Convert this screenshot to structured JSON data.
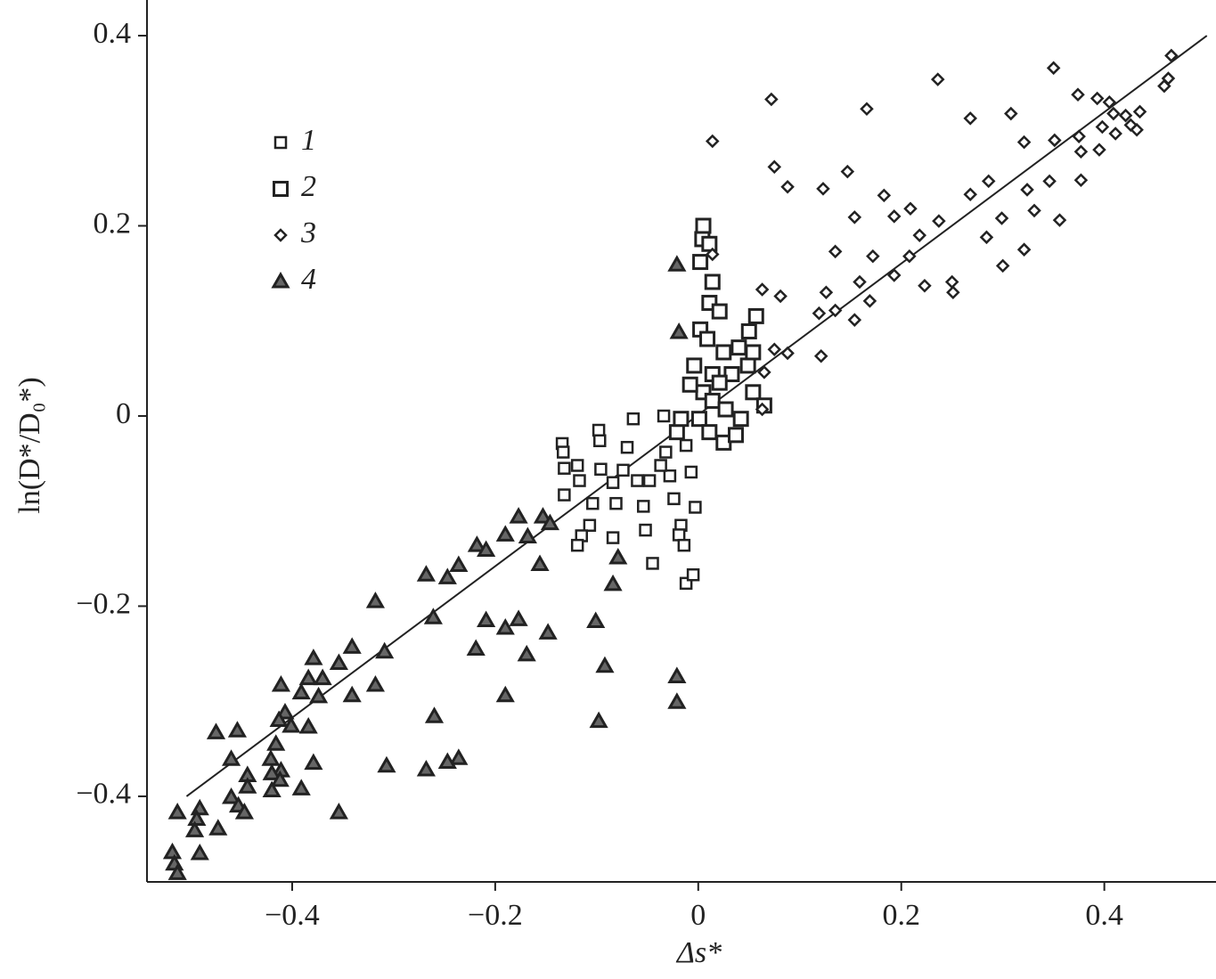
{
  "chart_data": {
    "type": "scatter",
    "x_label": "Δs*",
    "y_label": "ln(D*/D₀*)",
    "xlim": [
      -0.543,
      0.51
    ],
    "ylim": [
      -0.49,
      0.4375
    ],
    "xticks": [
      {
        "value": -0.4,
        "label": "−0.4"
      },
      {
        "value": -0.2,
        "label": "−0.2"
      },
      0,
      0.2,
      0.4
    ],
    "yticks": [
      {
        "value": -0.4,
        "label": "−0.4"
      },
      {
        "value": -0.2,
        "label": "−0.2"
      },
      0,
      0.2,
      0.4
    ],
    "legend": "upper left",
    "fit_line": {
      "x": [
        -0.504,
        0.501
      ],
      "y": [
        -0.4,
        0.4
      ],
      "color": "#222"
    },
    "series": [
      {
        "name": "1",
        "marker": "small-square",
        "color": "#222",
        "x": [
          -0.134,
          -0.133,
          -0.132,
          -0.119,
          -0.132,
          -0.117,
          -0.104,
          -0.098,
          -0.097,
          -0.096,
          -0.084,
          -0.107,
          -0.115,
          -0.119,
          -0.084,
          -0.074,
          -0.064,
          -0.07,
          -0.06,
          -0.054,
          -0.052,
          -0.045,
          -0.034,
          -0.032,
          -0.028,
          -0.024,
          -0.017,
          -0.019,
          -0.014,
          -0.012,
          -0.005,
          -0.007,
          -0.012,
          -0.003,
          -0.037,
          -0.048,
          -0.081
        ],
        "values": [
          -0.029,
          -0.038,
          -0.055,
          -0.052,
          -0.083,
          -0.068,
          -0.092,
          -0.015,
          -0.026,
          -0.056,
          -0.07,
          -0.115,
          -0.126,
          -0.136,
          -0.128,
          -0.057,
          -0.003,
          -0.033,
          -0.068,
          -0.095,
          -0.12,
          -0.155,
          0,
          -0.038,
          -0.063,
          -0.087,
          -0.115,
          -0.125,
          -0.136,
          -0.176,
          -0.167,
          -0.059,
          -0.031,
          -0.096,
          -0.052,
          -0.068,
          -0.092
        ]
      },
      {
        "name": "2",
        "marker": "square",
        "color": "#222",
        "x": [
          0.005,
          0.004,
          0.011,
          0.002,
          0.014,
          0.011,
          0.021,
          0.002,
          0.009,
          0.057,
          0.05,
          0.04,
          0.025,
          -0.004,
          0.014,
          0.033,
          0.049,
          0.054,
          0.005,
          0.014,
          0.027,
          0.042,
          0.001,
          0.011,
          0.025,
          0.037,
          -0.008,
          0.065,
          0.054,
          0.021,
          -0.021,
          -0.017
        ],
        "values": [
          0.2,
          0.186,
          0.181,
          0.162,
          0.141,
          0.119,
          0.11,
          0.091,
          0.081,
          0.105,
          0.089,
          0.072,
          0.067,
          0.053,
          0.044,
          0.044,
          0.053,
          0.025,
          0.025,
          0.016,
          0.007,
          -0.003,
          -0.003,
          -0.017,
          -0.028,
          -0.02,
          0.033,
          0.011,
          0.067,
          0.035,
          -0.017,
          -0.003
        ]
      },
      {
        "name": "3",
        "marker": "diamond",
        "color": "#222",
        "x": [
          0.466,
          0.463,
          0.459,
          0.35,
          0.236,
          0.072,
          0.166,
          0.374,
          0.393,
          0.405,
          0.409,
          0.421,
          0.435,
          0.426,
          0.432,
          0.411,
          0.308,
          0.268,
          0.321,
          0.351,
          0.375,
          0.395,
          0.377,
          0.014,
          0.075,
          0.088,
          0.147,
          0.123,
          0.377,
          0.346,
          0.286,
          0.324,
          0.268,
          0.183,
          0.209,
          0.237,
          0.299,
          0.331,
          0.154,
          0.193,
          0.218,
          0.284,
          0.321,
          0.135,
          0.172,
          0.208,
          0.3,
          0.014,
          0.193,
          0.159,
          0.223,
          0.25,
          0.251,
          0.126,
          0.063,
          0.081,
          0.169,
          0.119,
          0.135,
          0.154,
          0.088,
          0.121,
          0.075,
          0.063,
          0.065,
          0.398,
          0.356
        ],
        "values": [
          0.379,
          0.355,
          0.347,
          0.366,
          0.354,
          0.333,
          0.323,
          0.338,
          0.334,
          0.33,
          0.318,
          0.316,
          0.32,
          0.306,
          0.301,
          0.297,
          0.318,
          0.313,
          0.288,
          0.29,
          0.294,
          0.28,
          0.278,
          0.289,
          0.262,
          0.241,
          0.257,
          0.239,
          0.248,
          0.247,
          0.247,
          0.238,
          0.233,
          0.232,
          0.218,
          0.205,
          0.208,
          0.216,
          0.209,
          0.21,
          0.19,
          0.188,
          0.175,
          0.173,
          0.168,
          0.168,
          0.158,
          0.17,
          0.148,
          0.141,
          0.137,
          0.141,
          0.13,
          0.13,
          0.133,
          0.126,
          0.121,
          0.108,
          0.111,
          0.101,
          0.066,
          0.063,
          0.07,
          0.007,
          0.046,
          0.304,
          0.206
        ]
      },
      {
        "name": "4",
        "marker": "triangle",
        "color": "#222",
        "x": [
          -0.021,
          -0.019,
          -0.153,
          -0.177,
          -0.19,
          -0.168,
          -0.218,
          -0.209,
          -0.146,
          -0.156,
          -0.236,
          -0.247,
          -0.268,
          -0.079,
          -0.084,
          -0.318,
          -0.261,
          -0.209,
          -0.177,
          -0.19,
          -0.148,
          -0.101,
          -0.219,
          -0.169,
          -0.309,
          -0.092,
          -0.021,
          -0.021,
          -0.341,
          -0.379,
          -0.354,
          -0.37,
          -0.384,
          -0.318,
          -0.411,
          -0.391,
          -0.374,
          -0.341,
          -0.19,
          -0.26,
          -0.098,
          -0.407,
          -0.413,
          -0.401,
          -0.384,
          -0.475,
          -0.454,
          -0.416,
          -0.421,
          -0.46,
          -0.379,
          -0.411,
          -0.42,
          -0.307,
          -0.236,
          -0.247,
          -0.268,
          -0.444,
          -0.412,
          -0.391,
          -0.42,
          -0.444,
          -0.46,
          -0.453,
          -0.447,
          -0.354,
          -0.513,
          -0.491,
          -0.494,
          -0.496,
          -0.473,
          -0.491,
          -0.518,
          -0.516,
          -0.513
        ],
        "values": [
          0.159,
          0.088,
          -0.106,
          -0.106,
          -0.125,
          -0.127,
          -0.136,
          -0.141,
          -0.113,
          -0.156,
          -0.157,
          -0.17,
          -0.167,
          -0.149,
          -0.177,
          -0.195,
          -0.212,
          -0.215,
          -0.214,
          -0.223,
          -0.228,
          -0.216,
          -0.245,
          -0.251,
          -0.248,
          -0.263,
          -0.274,
          -0.301,
          -0.243,
          -0.255,
          -0.26,
          -0.276,
          -0.276,
          -0.283,
          -0.283,
          -0.291,
          -0.295,
          -0.294,
          -0.294,
          -0.316,
          -0.321,
          -0.312,
          -0.32,
          -0.326,
          -0.327,
          -0.333,
          -0.331,
          -0.345,
          -0.361,
          -0.361,
          -0.365,
          -0.373,
          -0.376,
          -0.368,
          -0.36,
          -0.364,
          -0.372,
          -0.378,
          -0.383,
          -0.392,
          -0.394,
          -0.39,
          -0.401,
          -0.41,
          -0.417,
          -0.417,
          -0.417,
          -0.413,
          -0.424,
          -0.436,
          -0.434,
          -0.46,
          -0.459,
          -0.471,
          -0.481
        ]
      }
    ]
  }
}
